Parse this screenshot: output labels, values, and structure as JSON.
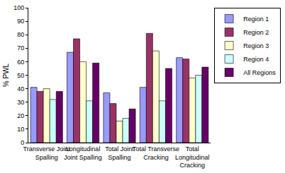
{
  "chart_data": {
    "type": "bar",
    "y_label": "% PWL",
    "categories": [
      "Transverse Joint Spalling",
      "Longitudinal Joint Spalling",
      "Total Joint Spalling",
      "Total Transverse Cracking",
      "Total Longitudinal Cracking"
    ],
    "series": [
      {
        "name": "Region 1",
        "color": "#9999FF",
        "values": [
          41,
          67,
          37,
          41,
          63
        ]
      },
      {
        "name": "Region 2",
        "color": "#993366",
        "values": [
          38,
          77,
          29,
          81,
          62
        ]
      },
      {
        "name": "Region 3",
        "color": "#FFFFCC",
        "values": [
          40,
          60,
          16,
          68,
          48
        ]
      },
      {
        "name": "Region 4",
        "color": "#CCFFFF",
        "values": [
          32,
          31,
          18,
          31,
          50
        ]
      },
      {
        "name": "All Regions",
        "color": "#660066",
        "values": [
          38,
          59,
          25,
          55,
          56
        ]
      }
    ],
    "ylim": [
      0,
      100
    ],
    "yticks": [
      0,
      10,
      20,
      30,
      40,
      50,
      60,
      70,
      80,
      90,
      100
    ],
    "grid": false,
    "legend": "right"
  }
}
